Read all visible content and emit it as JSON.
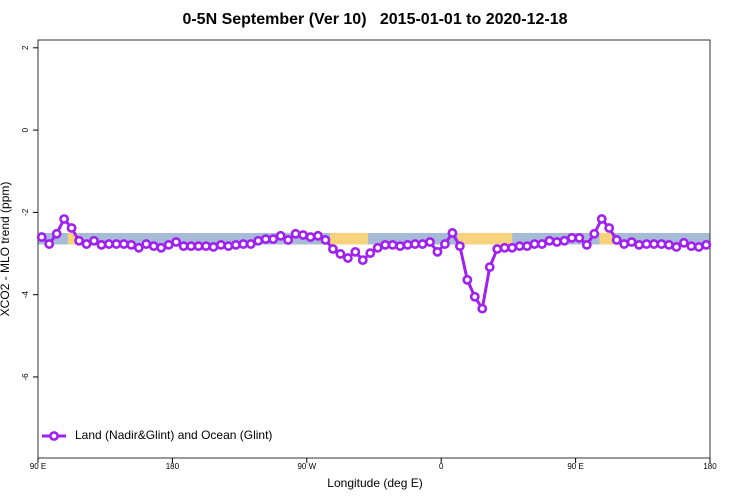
{
  "chart_data": {
    "type": "line",
    "title": "0-5N September (Ver 10)   2015-01-01 to 2020-12-18",
    "xlabel": "Longitude (deg E)",
    "ylabel": "XCO2 - MLO trend (ppm)",
    "xlim": [
      90,
      540
    ],
    "ylim": [
      -7.97,
      2.19
    ],
    "xticks": [
      {
        "value": 90,
        "label": "90 E"
      },
      {
        "value": 180,
        "label": "180"
      },
      {
        "value": 270,
        "label": "90 W"
      },
      {
        "value": 360,
        "label": "0"
      },
      {
        "value": 450,
        "label": "90 E"
      },
      {
        "value": 540,
        "label": "180"
      }
    ],
    "yticks": [
      2,
      0,
      -2,
      -4,
      -6
    ],
    "bands": {
      "ylim": [
        -2.78,
        -2.5
      ],
      "segments": [
        {
          "from": 90,
          "to": 540,
          "color": "#a7bbd6"
        },
        {
          "from": 110,
          "to": 117,
          "color": "#f7d27c"
        },
        {
          "from": 285.5,
          "to": 311,
          "color": "#f7d27c"
        },
        {
          "from": 371,
          "to": 407.5,
          "color": "#f7d27c"
        },
        {
          "from": 466,
          "to": 476,
          "color": "#f7d27c"
        }
      ]
    },
    "legend": "bottom-left",
    "x": [
      92.5,
      97.5,
      102.5,
      107.5,
      112.5,
      117.5,
      122.5,
      127.5,
      132.5,
      137.5,
      142.5,
      147.5,
      152.5,
      157.5,
      162.5,
      167.5,
      172.5,
      177.5,
      182.5,
      187.5,
      192.5,
      197.5,
      202.5,
      207.5,
      212.5,
      217.5,
      222.5,
      227.5,
      232.5,
      237.5,
      242.5,
      247.5,
      252.5,
      257.5,
      262.5,
      267.5,
      272.5,
      277.5,
      282.5,
      287.5,
      292.5,
      297.5,
      302.5,
      307.5,
      312.5,
      317.5,
      322.5,
      327.5,
      332.5,
      337.5,
      342.5,
      347.5,
      352.5,
      357.5,
      362.5,
      367.5,
      372.5,
      377.5,
      382.5,
      387.5,
      392.5,
      397.5,
      402.5,
      407.5,
      412.5,
      417.5,
      422.5,
      427.5,
      432.5,
      437.5,
      442.5,
      447.5,
      452.5,
      457.5,
      462.5,
      467.5,
      472.5,
      477.5,
      482.5,
      487.5,
      492.5,
      497.5,
      502.5,
      507.5,
      512.5,
      517.5,
      522.5,
      527.5,
      532.5,
      537.5
    ],
    "series": [
      {
        "name": "Land (Nadir&Glint) and Ocean (Glint)",
        "color": "#a020f0",
        "values": [
          -2.6,
          -2.77,
          -2.52,
          -2.16,
          -2.38,
          -2.69,
          -2.77,
          -2.69,
          -2.79,
          -2.77,
          -2.77,
          -2.77,
          -2.79,
          -2.86,
          -2.77,
          -2.82,
          -2.86,
          -2.79,
          -2.72,
          -2.82,
          -2.82,
          -2.82,
          -2.82,
          -2.84,
          -2.79,
          -2.82,
          -2.79,
          -2.77,
          -2.77,
          -2.69,
          -2.65,
          -2.65,
          -2.57,
          -2.67,
          -2.52,
          -2.55,
          -2.6,
          -2.57,
          -2.67,
          -2.89,
          -3.01,
          -3.11,
          -2.96,
          -3.16,
          -2.99,
          -2.86,
          -2.79,
          -2.79,
          -2.82,
          -2.79,
          -2.77,
          -2.77,
          -2.72,
          -2.96,
          -2.77,
          -2.5,
          -2.82,
          -3.64,
          -4.05,
          -4.34,
          -3.33,
          -2.89,
          -2.86,
          -2.86,
          -2.82,
          -2.82,
          -2.77,
          -2.77,
          -2.69,
          -2.72,
          -2.69,
          -2.62,
          -2.62,
          -2.79,
          -2.52,
          -2.16,
          -2.38,
          -2.67,
          -2.77,
          -2.72,
          -2.79,
          -2.77,
          -2.77,
          -2.77,
          -2.79,
          -2.84,
          -2.74,
          -2.82,
          -2.84,
          -2.79
        ]
      }
    ]
  }
}
